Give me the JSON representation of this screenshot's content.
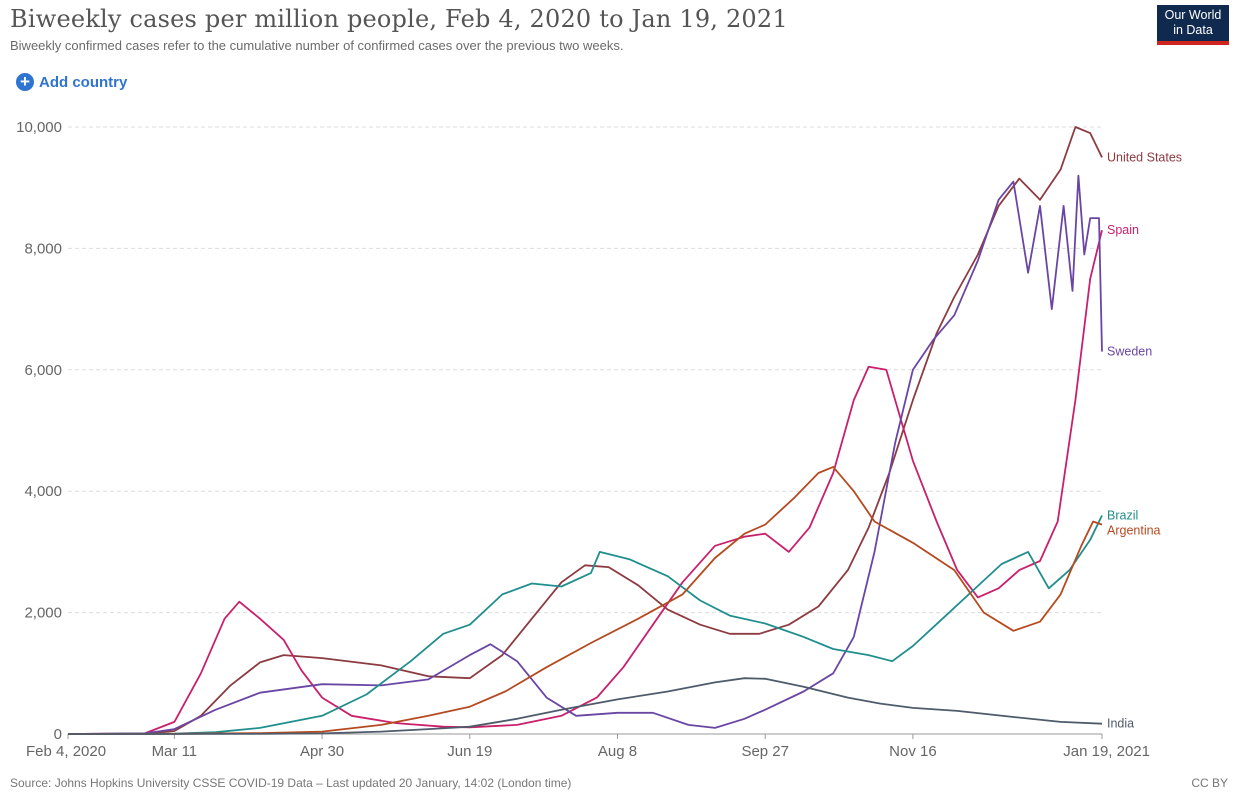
{
  "header": {
    "title": "Biweekly cases per million people, Feb 4, 2020 to Jan 19, 2021",
    "subtitle": "Biweekly confirmed cases refer to the cumulative number of confirmed cases over the previous two weeks.",
    "logo_line1": "Our World",
    "logo_line2": "in Data"
  },
  "controls": {
    "add_country_label": "Add country",
    "add_icon": "plus-circle-icon"
  },
  "footer": {
    "source": "Source: Johns Hopkins University CSSE COVID-19 Data – Last updated 20 January, 14:02 (London time)",
    "license": "CC BY"
  },
  "colors": {
    "logo_bg": "#0f2a4e",
    "logo_accent": "#ce261e",
    "link": "#2f74d0"
  },
  "chart_data": {
    "type": "line",
    "title": "Biweekly cases per million people, Feb 4, 2020 to Jan 19, 2021",
    "xlabel": "",
    "ylabel": "",
    "x_range": [
      "2020-02-04",
      "2021-01-19"
    ],
    "ylim": [
      0,
      10000
    ],
    "grid": "horizontal dashed",
    "legend": "end-of-line labels",
    "x_ticks": [
      {
        "label": "Feb 4, 2020",
        "date": "2020-02-04"
      },
      {
        "label": "Mar 11",
        "date": "2020-03-11"
      },
      {
        "label": "Apr 30",
        "date": "2020-04-30"
      },
      {
        "label": "Jun 19",
        "date": "2020-06-19"
      },
      {
        "label": "Aug 8",
        "date": "2020-08-08"
      },
      {
        "label": "Sep 27",
        "date": "2020-09-27"
      },
      {
        "label": "Nov 16",
        "date": "2020-11-16"
      },
      {
        "label": "Jan 19, 2021",
        "date": "2021-01-19"
      }
    ],
    "y_ticks": [
      {
        "label": "0",
        "value": 0
      },
      {
        "label": "2,000",
        "value": 2000
      },
      {
        "label": "4,000",
        "value": 4000
      },
      {
        "label": "6,000",
        "value": 6000
      },
      {
        "label": "8,000",
        "value": 8000
      },
      {
        "label": "10,000",
        "value": 10000
      }
    ],
    "series": [
      {
        "name": "United States",
        "color": "#8c3b41",
        "points": [
          [
            "2020-02-04",
            0
          ],
          [
            "2020-03-01",
            5
          ],
          [
            "2020-03-11",
            50
          ],
          [
            "2020-03-20",
            300
          ],
          [
            "2020-03-30",
            800
          ],
          [
            "2020-04-09",
            1180
          ],
          [
            "2020-04-17",
            1300
          ],
          [
            "2020-04-30",
            1250
          ],
          [
            "2020-05-20",
            1130
          ],
          [
            "2020-06-05",
            950
          ],
          [
            "2020-06-19",
            920
          ],
          [
            "2020-06-30",
            1300
          ],
          [
            "2020-07-10",
            1900
          ],
          [
            "2020-07-20",
            2500
          ],
          [
            "2020-07-28",
            2780
          ],
          [
            "2020-08-05",
            2750
          ],
          [
            "2020-08-15",
            2450
          ],
          [
            "2020-08-25",
            2050
          ],
          [
            "2020-09-05",
            1800
          ],
          [
            "2020-09-15",
            1650
          ],
          [
            "2020-09-25",
            1650
          ],
          [
            "2020-10-05",
            1800
          ],
          [
            "2020-10-15",
            2100
          ],
          [
            "2020-10-25",
            2700
          ],
          [
            "2020-11-01",
            3400
          ],
          [
            "2020-11-08",
            4300
          ],
          [
            "2020-11-16",
            5500
          ],
          [
            "2020-11-24",
            6600
          ],
          [
            "2020-11-30",
            7200
          ],
          [
            "2020-12-08",
            7900
          ],
          [
            "2020-12-15",
            8700
          ],
          [
            "2020-12-22",
            9150
          ],
          [
            "2020-12-29",
            8800
          ],
          [
            "2021-01-05",
            9300
          ],
          [
            "2021-01-10",
            10000
          ],
          [
            "2021-01-15",
            9900
          ],
          [
            "2021-01-19",
            9500
          ]
        ]
      },
      {
        "name": "Spain",
        "color": "#c9206c",
        "points": [
          [
            "2020-02-04",
            0
          ],
          [
            "2020-03-01",
            10
          ],
          [
            "2020-03-11",
            200
          ],
          [
            "2020-03-20",
            1000
          ],
          [
            "2020-03-28",
            1900
          ],
          [
            "2020-04-02",
            2180
          ],
          [
            "2020-04-09",
            1900
          ],
          [
            "2020-04-17",
            1550
          ],
          [
            "2020-04-23",
            1050
          ],
          [
            "2020-04-30",
            600
          ],
          [
            "2020-05-10",
            300
          ],
          [
            "2020-05-25",
            180
          ],
          [
            "2020-06-10",
            120
          ],
          [
            "2020-06-19",
            110
          ],
          [
            "2020-07-05",
            150
          ],
          [
            "2020-07-20",
            300
          ],
          [
            "2020-08-01",
            600
          ],
          [
            "2020-08-10",
            1100
          ],
          [
            "2020-08-20",
            1800
          ],
          [
            "2020-08-30",
            2500
          ],
          [
            "2020-09-10",
            3100
          ],
          [
            "2020-09-20",
            3250
          ],
          [
            "2020-09-27",
            3300
          ],
          [
            "2020-10-05",
            3000
          ],
          [
            "2020-10-12",
            3400
          ],
          [
            "2020-10-20",
            4300
          ],
          [
            "2020-10-27",
            5500
          ],
          [
            "2020-11-01",
            6050
          ],
          [
            "2020-11-07",
            6000
          ],
          [
            "2020-11-16",
            4500
          ],
          [
            "2020-11-24",
            3500
          ],
          [
            "2020-12-01",
            2700
          ],
          [
            "2020-12-08",
            2250
          ],
          [
            "2020-12-15",
            2400
          ],
          [
            "2020-12-22",
            2700
          ],
          [
            "2020-12-29",
            2850
          ],
          [
            "2021-01-04",
            3500
          ],
          [
            "2021-01-10",
            5500
          ],
          [
            "2021-01-15",
            7500
          ],
          [
            "2021-01-19",
            8300
          ]
        ]
      },
      {
        "name": "Sweden",
        "color": "#6a46a4",
        "points": [
          [
            "2020-02-04",
            0
          ],
          [
            "2020-03-01",
            10
          ],
          [
            "2020-03-11",
            80
          ],
          [
            "2020-03-25",
            400
          ],
          [
            "2020-04-09",
            680
          ],
          [
            "2020-04-30",
            820
          ],
          [
            "2020-05-20",
            800
          ],
          [
            "2020-06-05",
            900
          ],
          [
            "2020-06-19",
            1300
          ],
          [
            "2020-06-26",
            1480
          ],
          [
            "2020-07-05",
            1200
          ],
          [
            "2020-07-15",
            600
          ],
          [
            "2020-07-25",
            300
          ],
          [
            "2020-08-08",
            350
          ],
          [
            "2020-08-20",
            350
          ],
          [
            "2020-09-01",
            150
          ],
          [
            "2020-09-10",
            100
          ],
          [
            "2020-09-20",
            250
          ],
          [
            "2020-09-27",
            400
          ],
          [
            "2020-10-10",
            700
          ],
          [
            "2020-10-20",
            1000
          ],
          [
            "2020-10-27",
            1600
          ],
          [
            "2020-11-03",
            3000
          ],
          [
            "2020-11-10",
            4800
          ],
          [
            "2020-11-16",
            6000
          ],
          [
            "2020-11-23",
            6500
          ],
          [
            "2020-11-30",
            6900
          ],
          [
            "2020-12-08",
            7800
          ],
          [
            "2020-12-15",
            8800
          ],
          [
            "2020-12-20",
            9100
          ],
          [
            "2020-12-25",
            7600
          ],
          [
            "2020-12-29",
            8700
          ],
          [
            "2021-01-02",
            7000
          ],
          [
            "2021-01-06",
            8700
          ],
          [
            "2021-01-09",
            7300
          ],
          [
            "2021-01-11",
            9200
          ],
          [
            "2021-01-13",
            7900
          ],
          [
            "2021-01-15",
            8500
          ],
          [
            "2021-01-18",
            8500
          ],
          [
            "2021-01-19",
            6300
          ]
        ]
      },
      {
        "name": "Brazil",
        "color": "#218e8e",
        "points": [
          [
            "2020-02-04",
            0
          ],
          [
            "2020-03-11",
            5
          ],
          [
            "2020-03-25",
            30
          ],
          [
            "2020-04-09",
            100
          ],
          [
            "2020-04-30",
            300
          ],
          [
            "2020-05-15",
            650
          ],
          [
            "2020-05-30",
            1200
          ],
          [
            "2020-06-10",
            1650
          ],
          [
            "2020-06-19",
            1800
          ],
          [
            "2020-06-30",
            2300
          ],
          [
            "2020-07-10",
            2480
          ],
          [
            "2020-07-20",
            2430
          ],
          [
            "2020-07-30",
            2650
          ],
          [
            "2020-08-02",
            3000
          ],
          [
            "2020-08-12",
            2880
          ],
          [
            "2020-08-25",
            2600
          ],
          [
            "2020-09-05",
            2200
          ],
          [
            "2020-09-15",
            1950
          ],
          [
            "2020-09-27",
            1820
          ],
          [
            "2020-10-10",
            1600
          ],
          [
            "2020-10-20",
            1400
          ],
          [
            "2020-11-01",
            1300
          ],
          [
            "2020-11-09",
            1200
          ],
          [
            "2020-11-16",
            1450
          ],
          [
            "2020-11-26",
            1900
          ],
          [
            "2020-12-06",
            2350
          ],
          [
            "2020-12-16",
            2800
          ],
          [
            "2020-12-25",
            3000
          ],
          [
            "2021-01-01",
            2400
          ],
          [
            "2021-01-08",
            2700
          ],
          [
            "2021-01-15",
            3200
          ],
          [
            "2021-01-19",
            3600
          ]
        ]
      },
      {
        "name": "Argentina",
        "color": "#b54a20",
        "points": [
          [
            "2020-02-04",
            0
          ],
          [
            "2020-03-11",
            3
          ],
          [
            "2020-04-09",
            15
          ],
          [
            "2020-04-30",
            40
          ],
          [
            "2020-05-20",
            150
          ],
          [
            "2020-06-05",
            300
          ],
          [
            "2020-06-19",
            450
          ],
          [
            "2020-07-01",
            700
          ],
          [
            "2020-07-15",
            1100
          ],
          [
            "2020-07-30",
            1500
          ],
          [
            "2020-08-15",
            1900
          ],
          [
            "2020-08-30",
            2300
          ],
          [
            "2020-09-10",
            2900
          ],
          [
            "2020-09-20",
            3300
          ],
          [
            "2020-09-27",
            3450
          ],
          [
            "2020-10-07",
            3900
          ],
          [
            "2020-10-15",
            4300
          ],
          [
            "2020-10-20",
            4400
          ],
          [
            "2020-10-27",
            4000
          ],
          [
            "2020-11-03",
            3500
          ],
          [
            "2020-11-16",
            3150
          ],
          [
            "2020-11-30",
            2700
          ],
          [
            "2020-12-10",
            2000
          ],
          [
            "2020-12-20",
            1700
          ],
          [
            "2020-12-29",
            1850
          ],
          [
            "2021-01-05",
            2300
          ],
          [
            "2021-01-12",
            3100
          ],
          [
            "2021-01-16",
            3500
          ],
          [
            "2021-01-19",
            3450
          ]
        ]
      },
      {
        "name": "India",
        "color": "#4e5b6b",
        "points": [
          [
            "2020-02-04",
            0
          ],
          [
            "2020-04-09",
            2
          ],
          [
            "2020-04-30",
            10
          ],
          [
            "2020-05-20",
            40
          ],
          [
            "2020-06-05",
            80
          ],
          [
            "2020-06-19",
            120
          ],
          [
            "2020-07-05",
            250
          ],
          [
            "2020-07-20",
            400
          ],
          [
            "2020-08-08",
            570
          ],
          [
            "2020-08-25",
            700
          ],
          [
            "2020-09-10",
            850
          ],
          [
            "2020-09-20",
            920
          ],
          [
            "2020-09-27",
            910
          ],
          [
            "2020-10-10",
            780
          ],
          [
            "2020-10-25",
            600
          ],
          [
            "2020-11-05",
            500
          ],
          [
            "2020-11-16",
            430
          ],
          [
            "2020-12-01",
            380
          ],
          [
            "2020-12-20",
            280
          ],
          [
            "2021-01-05",
            200
          ],
          [
            "2021-01-19",
            170
          ]
        ]
      }
    ]
  }
}
